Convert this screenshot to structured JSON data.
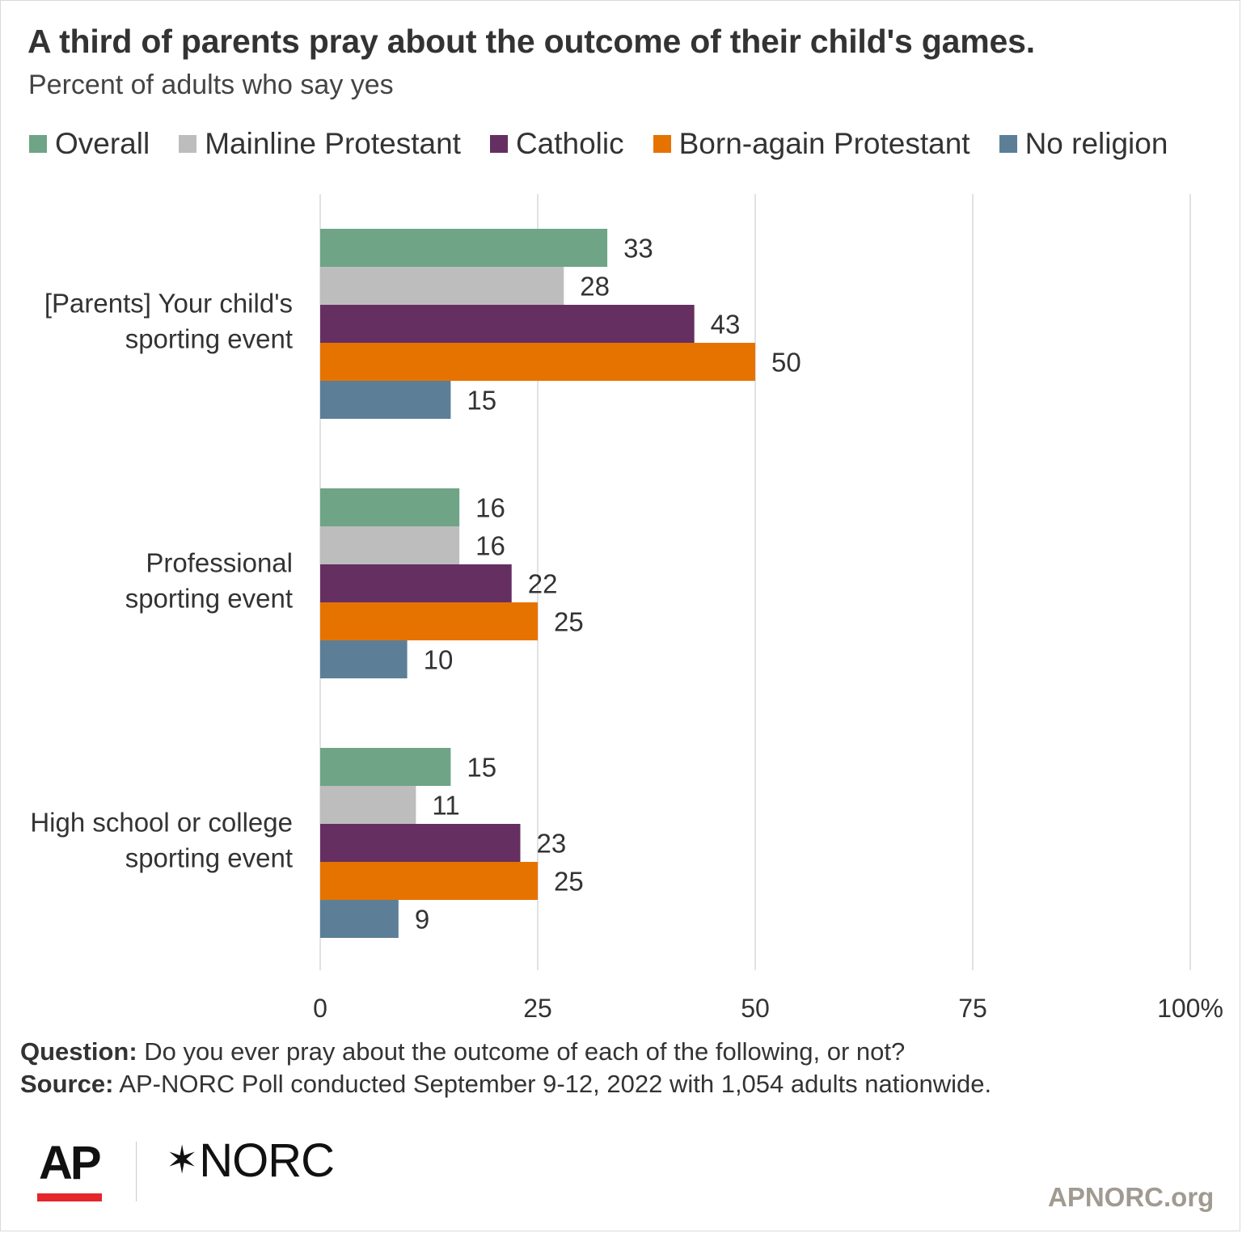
{
  "colors": {
    "overall": "#6fa487",
    "mainline": "#bdbdbd",
    "catholic": "#652f61",
    "born_again": "#e67300",
    "no_religion": "#5c7f97",
    "grid": "#d9d9d9",
    "ap_red": "#e4262b"
  },
  "chart_data": {
    "type": "bar",
    "orientation": "horizontal",
    "title": "A third of parents pray about the outcome of their child's games.",
    "subtitle": "Percent of adults who say yes",
    "categories": [
      [
        "[Parents] Your child's",
        "sporting event"
      ],
      [
        "Professional",
        "sporting event"
      ],
      [
        "High school or college",
        "sporting event"
      ]
    ],
    "series": [
      {
        "name": "Overall",
        "color": "#6fa487",
        "values": [
          33,
          16,
          15
        ]
      },
      {
        "name": "Mainline Protestant",
        "color": "#bdbdbd",
        "values": [
          28,
          16,
          11
        ]
      },
      {
        "name": "Catholic",
        "color": "#652f61",
        "values": [
          43,
          22,
          23
        ]
      },
      {
        "name": "Born-again Protestant",
        "color": "#e67300",
        "values": [
          50,
          25,
          25
        ]
      },
      {
        "name": "No religion",
        "color": "#5c7f97",
        "values": [
          15,
          10,
          9
        ]
      }
    ],
    "xlim": [
      0,
      100
    ],
    "xticks": [
      0,
      25,
      50,
      75,
      100
    ],
    "xtick_labels": [
      "0",
      "25",
      "50",
      "75",
      "100%"
    ],
    "grid": true,
    "legend_position": "top"
  },
  "notes": {
    "question_label": "Question:",
    "question_text": "Do you ever pray about the outcome of each of the following, or not?",
    "source_label": "Source:",
    "source_text": "AP-NORC Poll conducted September 9-12, 2022 with 1,054 adults nationwide."
  },
  "branding": {
    "ap_logo": "AP",
    "norc_logo": "NORC",
    "norc_mark": "✶",
    "site": "APNORC.org"
  }
}
